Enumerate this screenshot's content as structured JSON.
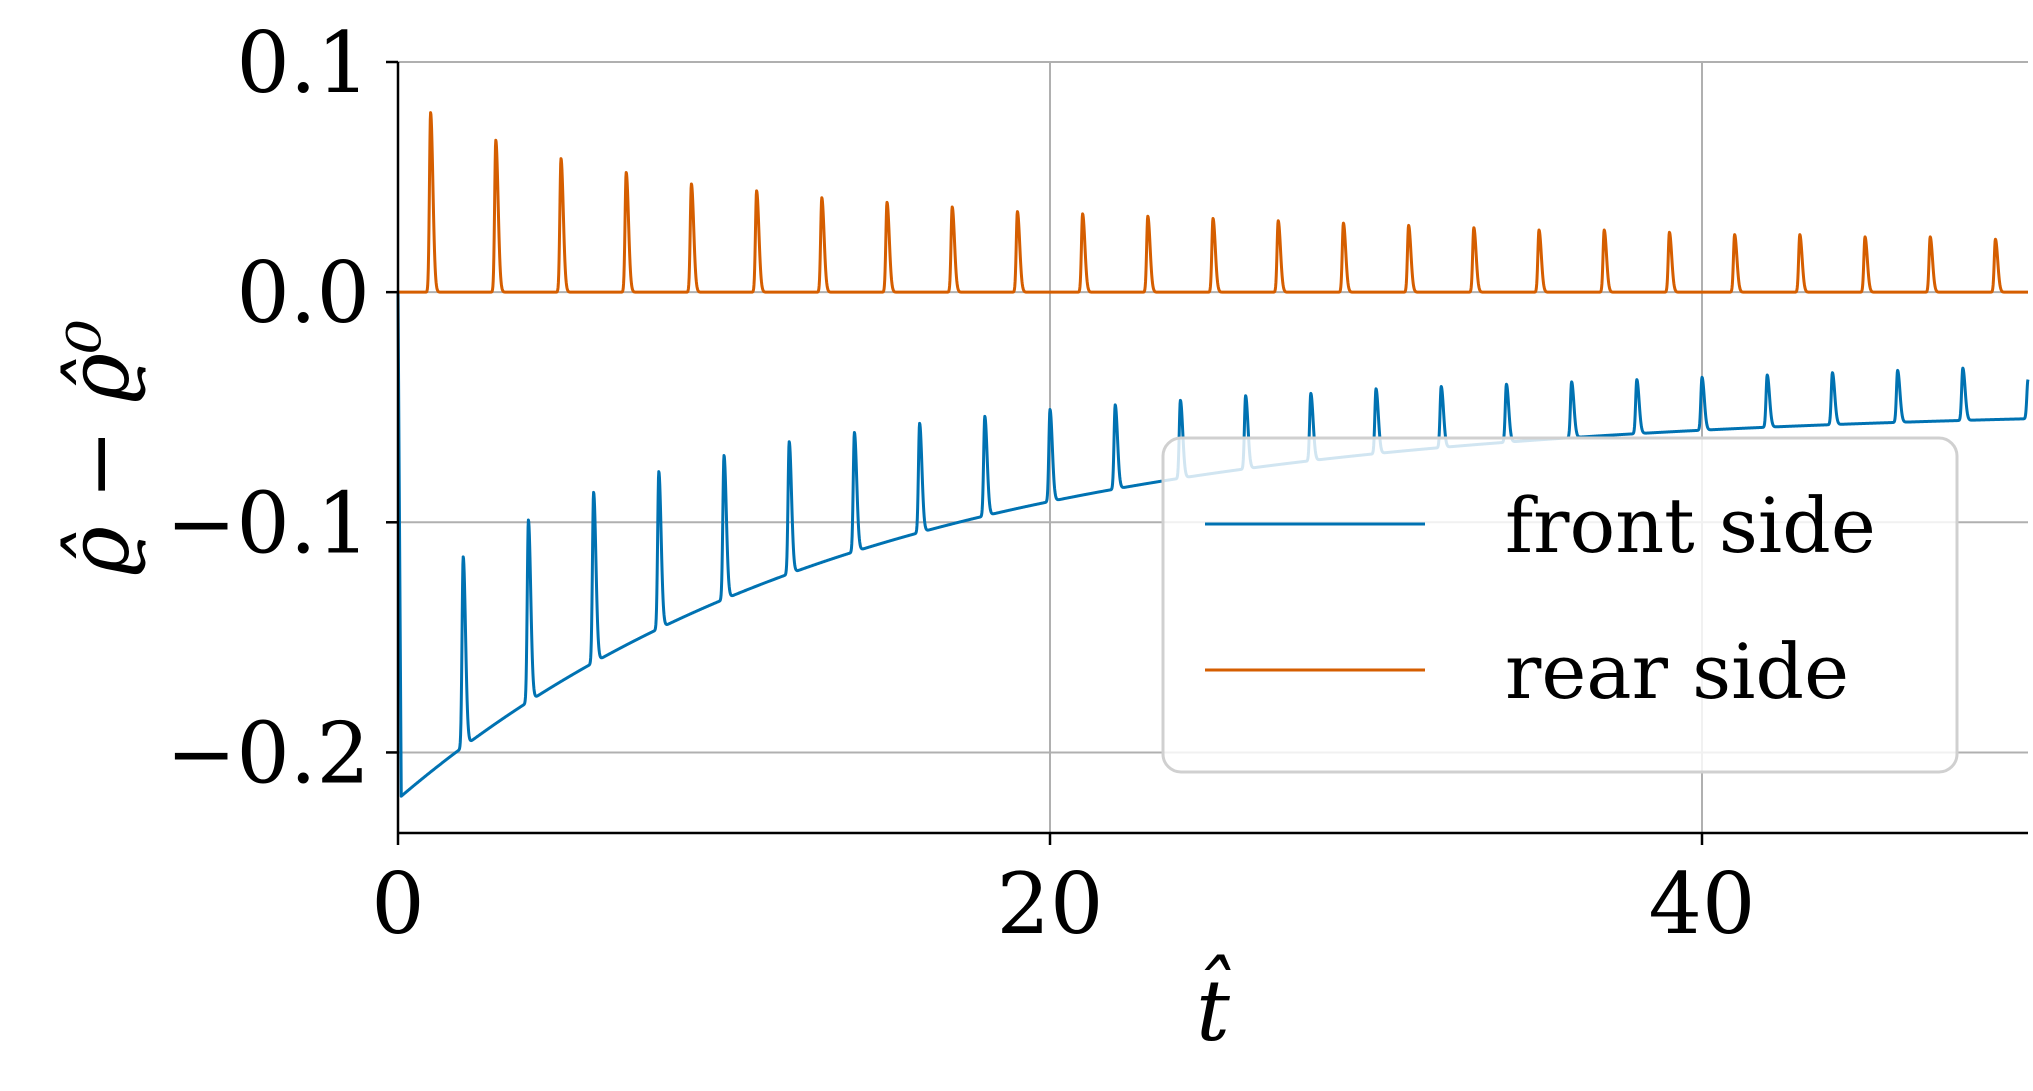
{
  "chart_data": {
    "type": "line",
    "title": "",
    "xlabel": "t̂",
    "ylabel": "ϱ̂ − ϱ̂⁰",
    "xlim": [
      0,
      50
    ],
    "ylim": [
      -0.235,
      0.1
    ],
    "grid": true,
    "legend_position": "lower-right",
    "x_ticks": [
      0,
      20,
      40
    ],
    "x_tick_labels": [
      "0",
      "20",
      "40"
    ],
    "y_ticks": [
      0.1,
      0.0,
      -0.1,
      -0.2
    ],
    "y_tick_labels": [
      "0.1",
      "0.0",
      "−0.1",
      "−0.2"
    ],
    "series": [
      {
        "name": "front side",
        "color": "#0072b2",
        "baseline": {
          "start_x": 0.1,
          "start_y": -0.219,
          "end_x": 50,
          "end_y": -0.055,
          "tau": 14
        },
        "spikes": {
          "x": [
            2,
            4,
            6,
            8,
            10,
            12,
            14,
            16,
            18,
            20,
            22,
            24,
            26,
            28,
            30,
            32,
            34,
            36,
            38,
            40,
            42,
            44,
            46,
            48,
            50
          ],
          "y": [
            -0.115,
            -0.099,
            -0.087,
            -0.078,
            -0.071,
            -0.065,
            -0.061,
            -0.057,
            -0.054,
            -0.051,
            -0.049,
            -0.047,
            -0.045,
            -0.044,
            -0.042,
            -0.041,
            -0.04,
            -0.039,
            -0.038,
            -0.037,
            -0.036,
            -0.035,
            -0.034,
            -0.033,
            -0.038
          ]
        }
      },
      {
        "name": "rear side",
        "color": "#d55e00",
        "baseline": {
          "value": 0.0
        },
        "spikes": {
          "x": [
            1,
            3,
            5,
            7,
            9,
            11,
            13,
            15,
            17,
            19,
            21,
            23,
            25,
            27,
            29,
            31,
            33,
            35,
            37,
            39,
            41,
            43,
            45,
            47,
            49
          ],
          "y": [
            0.078,
            0.066,
            0.058,
            0.052,
            0.047,
            0.044,
            0.041,
            0.039,
            0.037,
            0.035,
            0.034,
            0.033,
            0.032,
            0.031,
            0.03,
            0.029,
            0.028,
            0.027,
            0.027,
            0.026,
            0.025,
            0.025,
            0.024,
            0.024,
            0.023
          ]
        }
      }
    ]
  }
}
